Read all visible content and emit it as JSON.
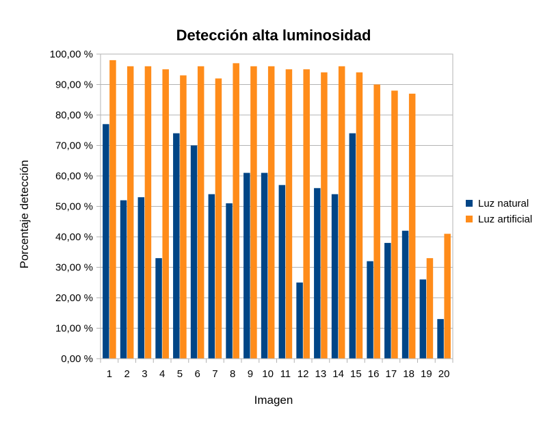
{
  "chart_data": {
    "type": "bar",
    "title": "Detección alta luminosidad",
    "xlabel": "Imagen",
    "ylabel": "Porcentaje detección",
    "categories": [
      "1",
      "2",
      "3",
      "4",
      "5",
      "6",
      "7",
      "8",
      "9",
      "10",
      "11",
      "12",
      "13",
      "14",
      "15",
      "16",
      "17",
      "18",
      "19",
      "20"
    ],
    "series": [
      {
        "name": "Luz natural",
        "color": "#004586",
        "values": [
          77,
          52,
          53,
          33,
          74,
          70,
          54,
          51,
          61,
          61,
          57,
          25,
          56,
          54,
          74,
          32,
          38,
          42,
          26,
          13
        ]
      },
      {
        "name": "Luz artificial",
        "color": "#ff8c1a",
        "values": [
          98,
          96,
          96,
          95,
          93,
          96,
          92,
          97,
          96,
          96,
          95,
          95,
          94,
          96,
          94,
          90,
          88,
          87,
          33,
          41
        ]
      }
    ],
    "ylim": [
      0,
      100
    ],
    "yticks": [
      "0,00 %",
      "10,00 %",
      "20,00 %",
      "30,00 %",
      "40,00 %",
      "50,00 %",
      "60,00 %",
      "70,00 %",
      "80,00 %",
      "90,00 %",
      "100,00 %"
    ],
    "grid": true,
    "legend_position": "right"
  }
}
